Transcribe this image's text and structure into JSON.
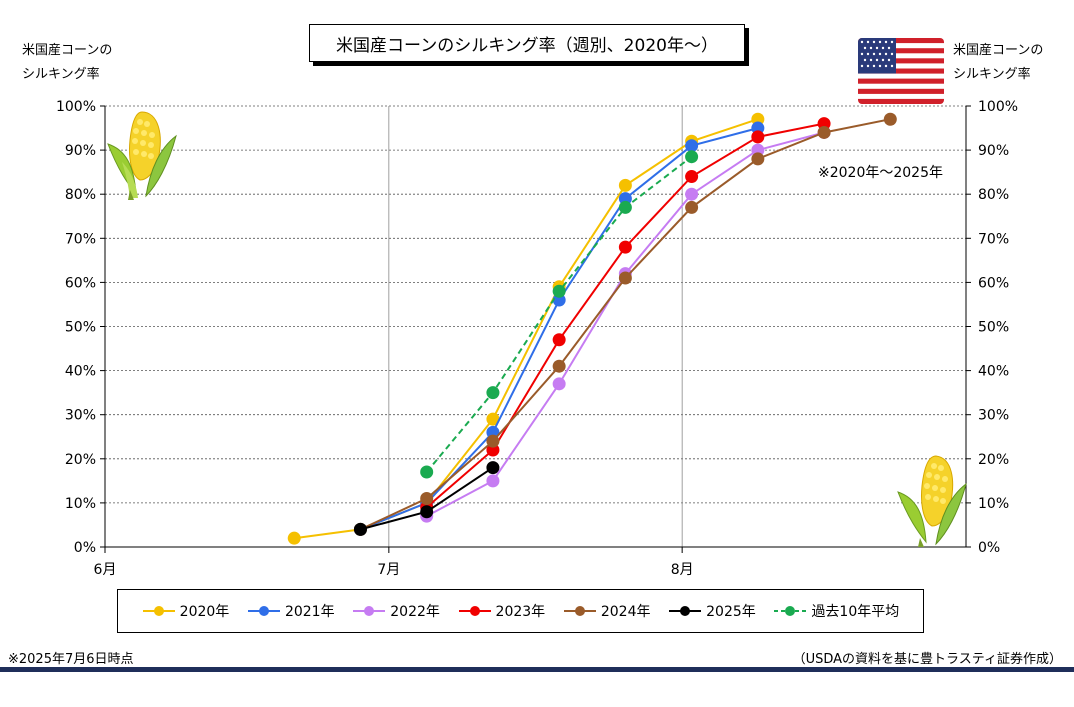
{
  "title": "米国産コーンのシルキング率（週別、2020年～）",
  "left_axis_caption": [
    "米国産コーンの",
    "シルキング率"
  ],
  "right_axis_caption": [
    "米国産コーンの",
    "シルキング率"
  ],
  "range_note": "※2020年～2025年",
  "footnote_left": "※2025年7月6日時点",
  "footnote_right": "（USDAの資料を基に豊トラスティ証券作成）",
  "icons": {
    "flag": "us-flag-icon",
    "corn": "corn-icon"
  },
  "chart_data": {
    "type": "line",
    "title": "米国産コーンのシルキング率（週別、2020年～）",
    "xlabel": "",
    "ylabel": "米国産コーンのシルキング率",
    "x_ticks": [
      "6月",
      "7月",
      "8月"
    ],
    "x_tick_dates": [
      "06-01",
      "07-01",
      "08-01"
    ],
    "xlim": [
      "06-01",
      "08-31"
    ],
    "y_ticks": [
      "0%",
      "10%",
      "20%",
      "30%",
      "40%",
      "50%",
      "60%",
      "70%",
      "80%",
      "90%",
      "100%"
    ],
    "ylim": [
      0,
      100
    ],
    "grid": true,
    "legend_position": "bottom",
    "series": [
      {
        "name": "2020年",
        "color": "#f5c000",
        "dash": false,
        "points": [
          [
            "06-21",
            2
          ],
          [
            "06-28",
            4
          ],
          [
            "07-05",
            10
          ],
          [
            "07-12",
            29
          ],
          [
            "07-19",
            59
          ],
          [
            "07-26",
            82
          ],
          [
            "08-02",
            92
          ],
          [
            "08-09",
            97
          ]
        ]
      },
      {
        "name": "2021年",
        "color": "#2f6ee8",
        "dash": false,
        "points": [
          [
            "06-28",
            4
          ],
          [
            "07-05",
            10
          ],
          [
            "07-12",
            26
          ],
          [
            "07-19",
            56
          ],
          [
            "07-26",
            79
          ],
          [
            "08-02",
            91
          ],
          [
            "08-09",
            95
          ]
        ]
      },
      {
        "name": "2022年",
        "color": "#c67cf2",
        "dash": false,
        "points": [
          [
            "07-05",
            7
          ],
          [
            "07-12",
            15
          ],
          [
            "07-19",
            37
          ],
          [
            "07-26",
            62
          ],
          [
            "08-02",
            80
          ],
          [
            "08-09",
            90
          ],
          [
            "08-16",
            94
          ]
        ]
      },
      {
        "name": "2023年",
        "color": "#f00000",
        "dash": false,
        "points": [
          [
            "07-05",
            9
          ],
          [
            "07-12",
            22
          ],
          [
            "07-19",
            47
          ],
          [
            "07-26",
            68
          ],
          [
            "08-02",
            84
          ],
          [
            "08-09",
            93
          ],
          [
            "08-16",
            96
          ]
        ]
      },
      {
        "name": "2024年",
        "color": "#9a5b2a",
        "dash": false,
        "points": [
          [
            "06-28",
            4
          ],
          [
            "07-05",
            11
          ],
          [
            "07-12",
            24
          ],
          [
            "07-19",
            41
          ],
          [
            "07-26",
            61
          ],
          [
            "08-02",
            77
          ],
          [
            "08-09",
            88
          ],
          [
            "08-16",
            94
          ],
          [
            "08-23",
            97
          ]
        ]
      },
      {
        "name": "2025年",
        "color": "#000000",
        "dash": false,
        "points": [
          [
            "06-28",
            4
          ],
          [
            "07-05",
            8
          ],
          [
            "07-12",
            18
          ]
        ]
      },
      {
        "name": "過去10年平均",
        "color": "#1aaa50",
        "dash": true,
        "points": [
          [
            "07-05",
            17
          ],
          [
            "07-12",
            35
          ],
          [
            "07-19",
            58
          ],
          [
            "07-26",
            77
          ],
          [
            "08-02",
            88.5
          ]
        ]
      }
    ]
  }
}
